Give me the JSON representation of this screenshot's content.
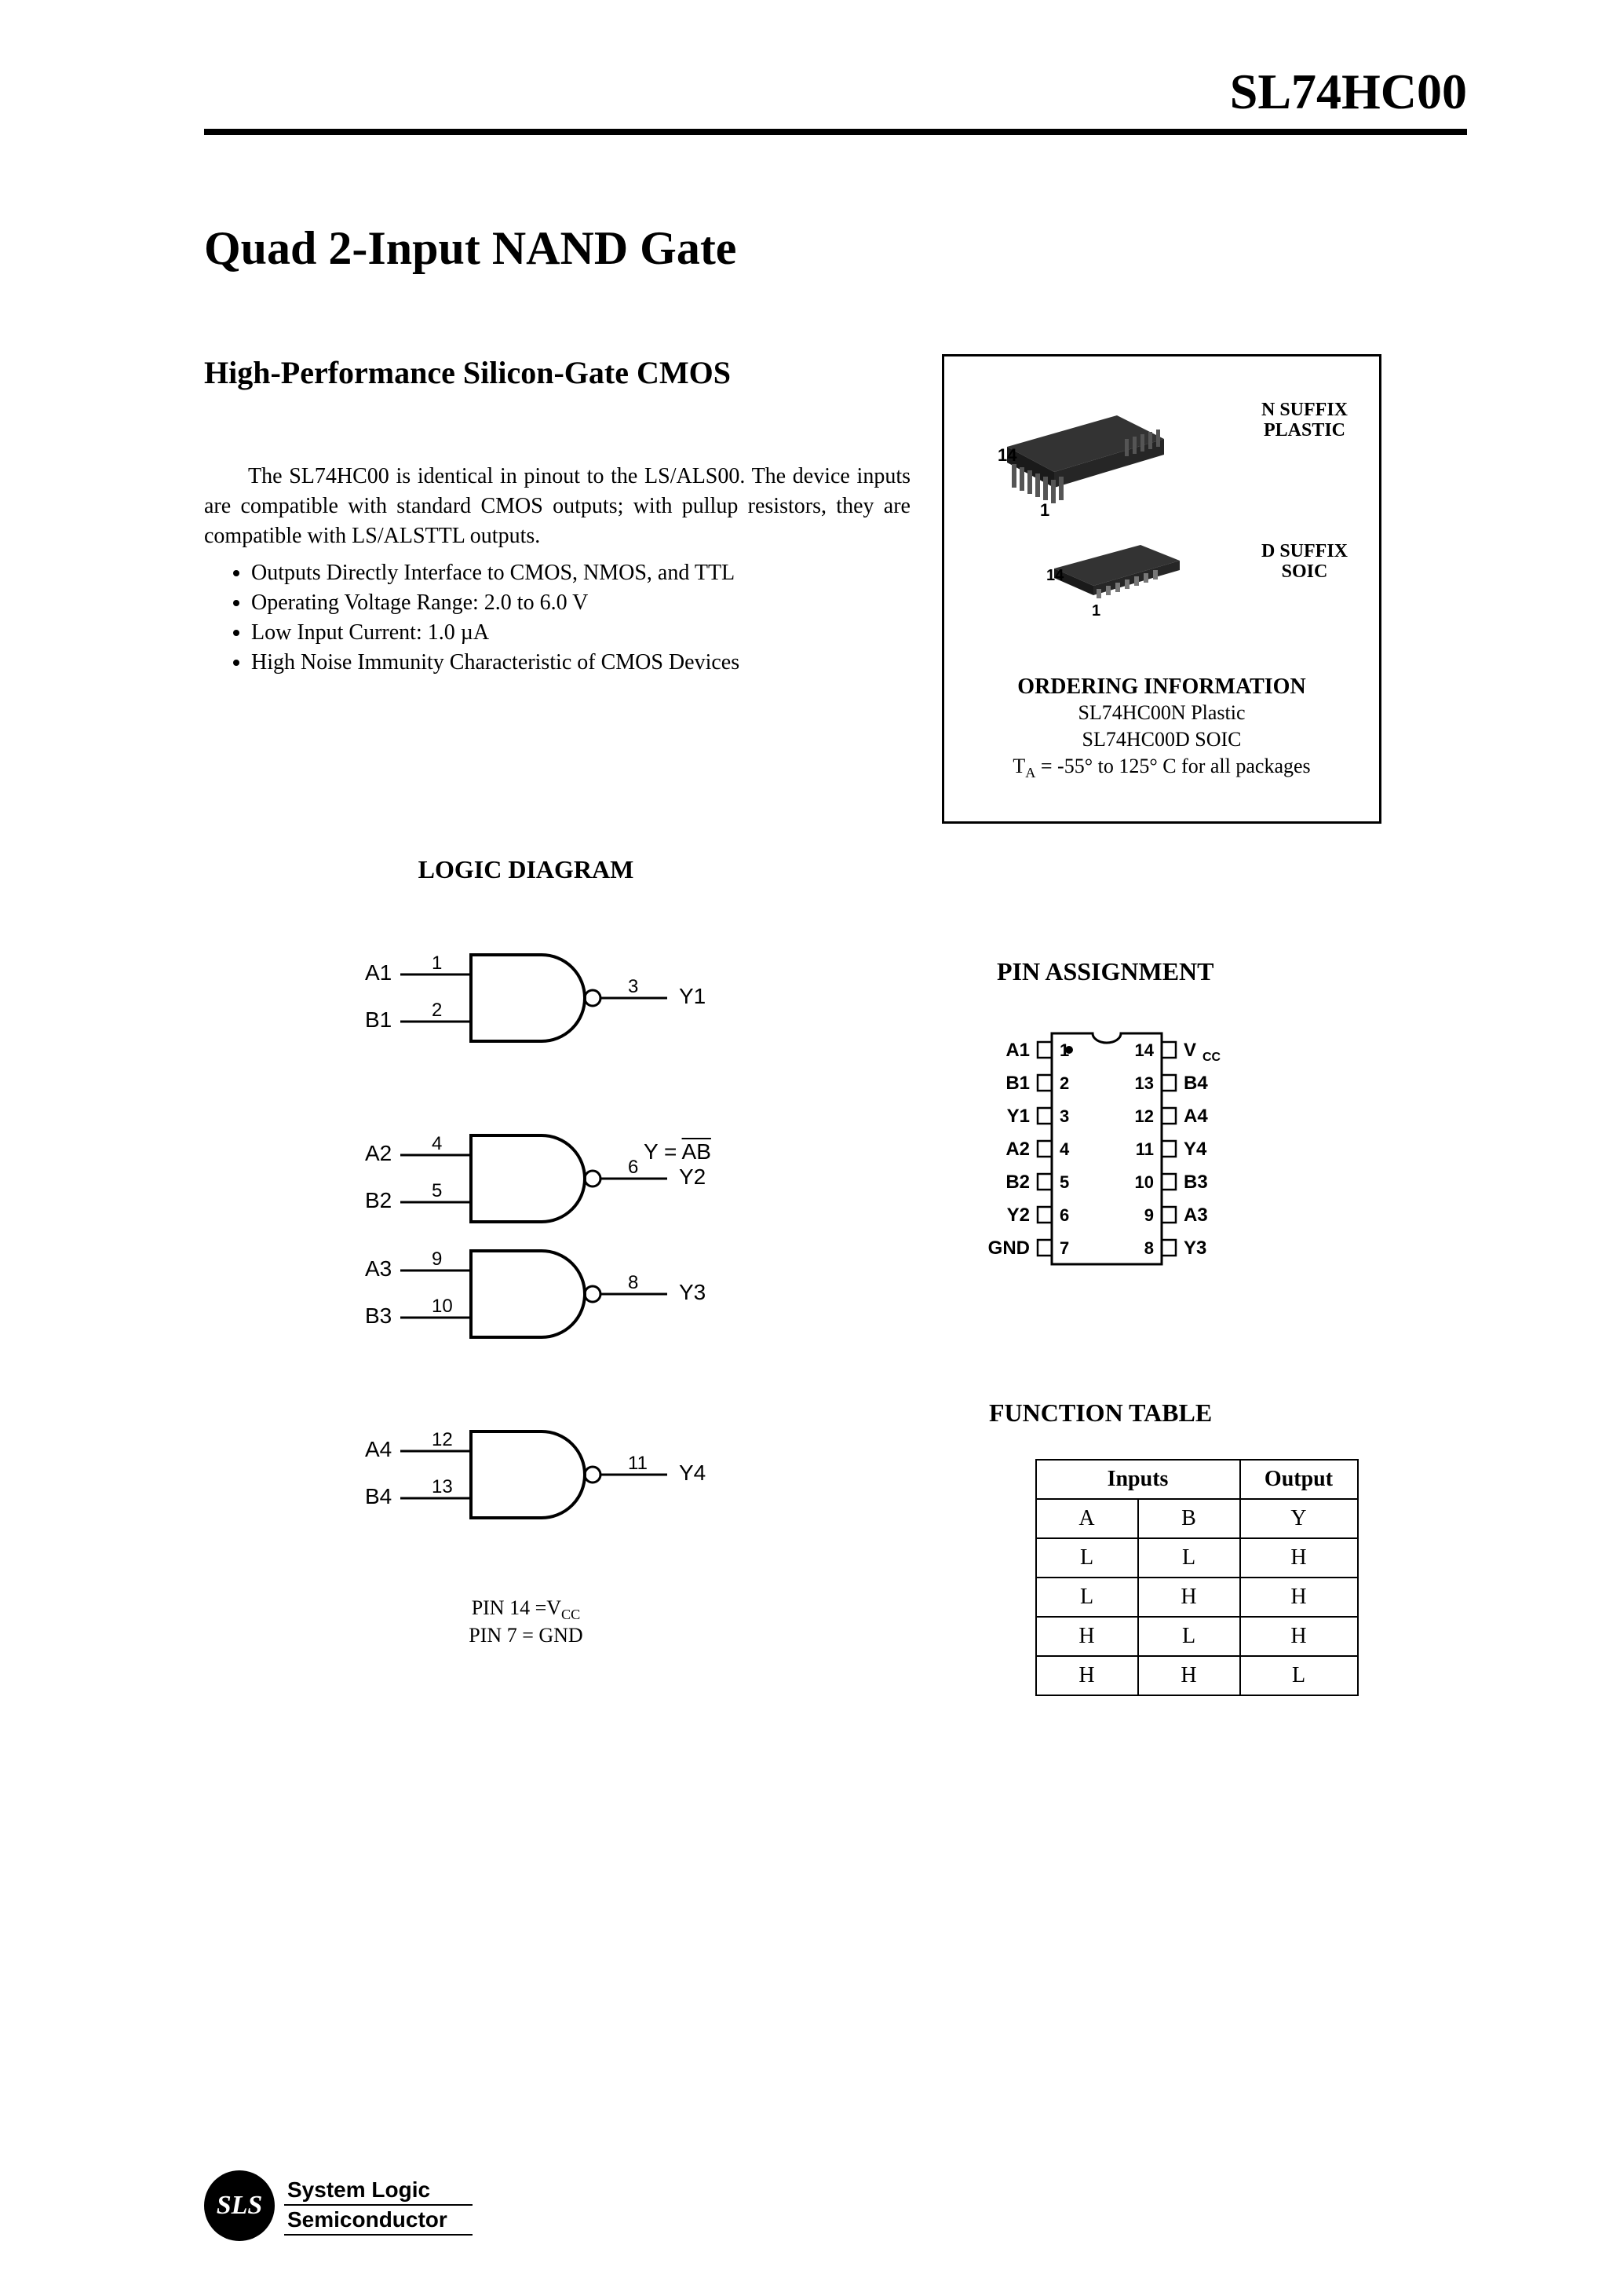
{
  "header": {
    "part_number": "SL74HC00"
  },
  "title": "Quad 2-Input NAND Gate",
  "subtitle": "High-Performance Silicon-Gate CMOS",
  "intro": "The SL74HC00 is identical in pinout to the LS/ALS00. The device inputs are compatible with standard CMOS outputs; with pullup resistors, they are compatible with LS/ALSTTL outputs.",
  "bullets": [
    "Outputs Directly Interface to CMOS, NMOS, and TTL",
    "Operating Voltage Range: 2.0 to 6.0 V",
    "Low Input Current: 1.0 µA",
    "High Noise Immunity Characteristic of CMOS Devices"
  ],
  "packages": {
    "n": {
      "label_l1": "N SUFFIX",
      "label_l2": "PLASTIC",
      "pin_left": "1",
      "pin_right": "14"
    },
    "d": {
      "label_l1": "D SUFFIX",
      "label_l2": "SOIC",
      "pin_left": "1",
      "pin_right": "14"
    }
  },
  "ordering": {
    "title": "ORDERING INFORMATION",
    "lines": [
      "SL74HC00N Plastic",
      "SL74HC00D SOIC"
    ],
    "temp_prefix": "T",
    "temp_sub": "A",
    "temp_rest": " = -55° to 125° C for all packages"
  },
  "logic": {
    "heading": "LOGIC DIAGRAM",
    "gates": [
      {
        "inA": "A1",
        "inB": "B1",
        "pinA": "1",
        "pinB": "2",
        "pinY": "3",
        "out": "Y1"
      },
      {
        "inA": "A2",
        "inB": "B2",
        "pinA": "4",
        "pinB": "5",
        "pinY": "6",
        "out": "Y2"
      },
      {
        "inA": "A3",
        "inB": "B3",
        "pinA": "9",
        "pinB": "10",
        "pinY": "8",
        "out": "Y3"
      },
      {
        "inA": "A4",
        "inB": "B4",
        "pinA": "12",
        "pinB": "13",
        "pinY": "11",
        "out": "Y4"
      }
    ],
    "equation_lhs": "Y = ",
    "equation_rhs": "AB",
    "pin_note_1_pre": "PIN 14 =V",
    "pin_note_1_sub": "CC",
    "pin_note_2": "PIN 7 = GND"
  },
  "pin_assignment": {
    "heading": "PIN ASSIGNMENT",
    "left": [
      "A1",
      "B1",
      "Y1",
      "A2",
      "B2",
      "Y2",
      "GND"
    ],
    "right_labels": [
      "V",
      "B4",
      "A4",
      "Y4",
      "B3",
      "A3",
      "Y3"
    ],
    "right_sub": [
      "CC",
      "",
      "",
      "",
      "",
      "",
      ""
    ],
    "left_nums": [
      "1",
      "2",
      "3",
      "4",
      "5",
      "6",
      "7"
    ],
    "right_nums": [
      "14",
      "13",
      "12",
      "11",
      "10",
      "9",
      "8"
    ]
  },
  "function_table": {
    "heading": "FUNCTION TABLE",
    "inputs_label": "Inputs",
    "output_label": "Output",
    "col_a": "A",
    "col_b": "B",
    "col_y": "Y",
    "rows": [
      [
        "L",
        "L",
        "H"
      ],
      [
        "L",
        "H",
        "H"
      ],
      [
        "H",
        "L",
        "H"
      ],
      [
        "H",
        "H",
        "L"
      ]
    ]
  },
  "footer": {
    "badge": "SLS",
    "line1": "System Logic",
    "line2": "Semiconductor"
  },
  "style": {
    "stroke": "#000000",
    "font_sans": "Arial, Helvetica, sans-serif"
  }
}
